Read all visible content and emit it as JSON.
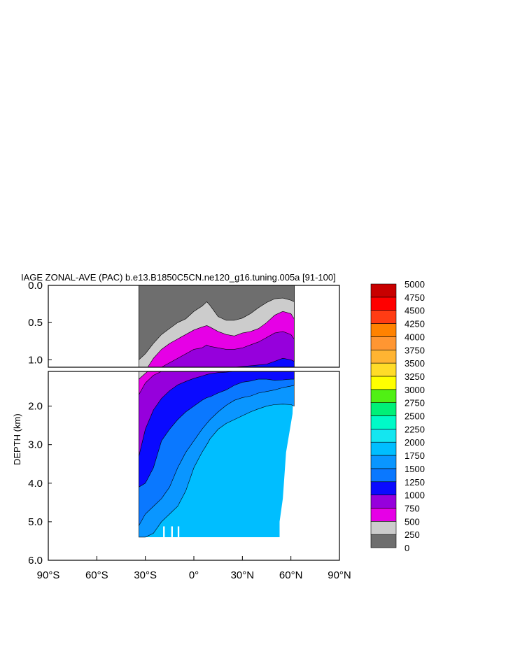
{
  "chart_data": {
    "type": "contour",
    "title": "IAGE ZONAL-AVE (PAC) b.e13.B1850C5CN.ne120_g16.tuning.005a [91-100]",
    "ylabel": "DEPTH (km)",
    "xlabel": "",
    "xlim": [
      -90,
      90
    ],
    "ylim_upper_panel": [
      0.0,
      1.1
    ],
    "ylim_lower_panel": [
      1.1,
      6.0
    ],
    "x_ticks": [
      {
        "value": -90,
        "label": "90°S"
      },
      {
        "value": -60,
        "label": "60°S"
      },
      {
        "value": -30,
        "label": "30°S"
      },
      {
        "value": 0,
        "label": "0°"
      },
      {
        "value": 30,
        "label": "30°N"
      },
      {
        "value": 60,
        "label": "60°N"
      },
      {
        "value": 90,
        "label": "90°N"
      }
    ],
    "y_ticks_upper": [
      {
        "value": 0.0,
        "label": "0.0"
      },
      {
        "value": 0.5,
        "label": "0.5"
      },
      {
        "value": 1.0,
        "label": "1.0"
      }
    ],
    "y_ticks_lower": [
      {
        "value": 2.0,
        "label": "2.0"
      },
      {
        "value": 3.0,
        "label": "3.0"
      },
      {
        "value": 4.0,
        "label": "4.0"
      },
      {
        "value": 5.0,
        "label": "5.0"
      },
      {
        "value": 6.0,
        "label": "6.0"
      }
    ],
    "colorbar": {
      "levels": [
        0,
        250,
        500,
        750,
        1000,
        1250,
        1500,
        1750,
        2000,
        2250,
        2500,
        2750,
        3000,
        3250,
        3500,
        3750,
        4000,
        4250,
        4500,
        4750,
        5000
      ],
      "labels": [
        "0",
        "250",
        "500",
        "750",
        "1000",
        "1250",
        "1500",
        "1750",
        "2000",
        "2250",
        "2500",
        "2750",
        "3000",
        "3250",
        "3500",
        "3750",
        "4000",
        "4250",
        "4500",
        "4750",
        "5000"
      ],
      "colors": [
        "#6e6e6e",
        "#cccccc",
        "#e600e6",
        "#9600dc",
        "#0a0aff",
        "#0a78ff",
        "#0a96ff",
        "#00beff",
        "#14e6f0",
        "#00fac8",
        "#00f078",
        "#50f014",
        "#ffff00",
        "#ffdc28",
        "#ffb432",
        "#ff9632",
        "#ff8200",
        "#ff3c14",
        "#ff0000",
        "#c80000"
      ]
    },
    "contour_boundaries": {
      "lat": [
        -34,
        -30,
        -25,
        -20,
        -15,
        -10,
        -5,
        0,
        5,
        8,
        10,
        15,
        20,
        25,
        30,
        35,
        40,
        45,
        50,
        55,
        60,
        62
      ],
      "depth_250": [
        1.0,
        0.92,
        0.78,
        0.66,
        0.58,
        0.5,
        0.45,
        0.35,
        0.28,
        0.22,
        0.27,
        0.42,
        0.47,
        0.47,
        0.44,
        0.38,
        0.3,
        0.23,
        0.18,
        0.17,
        0.2,
        0.22
      ],
      "depth_500": [
        1.3,
        1.15,
        0.98,
        0.86,
        0.78,
        0.72,
        0.66,
        0.6,
        0.56,
        0.54,
        0.56,
        0.62,
        0.66,
        0.68,
        0.64,
        0.62,
        0.58,
        0.5,
        0.4,
        0.35,
        0.38,
        0.45
      ],
      "depth_750": [
        1.7,
        1.4,
        1.2,
        1.1,
        1.04,
        0.98,
        0.92,
        0.86,
        0.84,
        0.8,
        0.82,
        0.84,
        0.86,
        0.86,
        0.84,
        0.8,
        0.76,
        0.7,
        0.64,
        0.62,
        0.66,
        0.72
      ],
      "depth_1000": [
        3.3,
        2.6,
        2.1,
        1.8,
        1.6,
        1.45,
        1.36,
        1.28,
        1.22,
        1.18,
        1.16,
        1.13,
        1.12,
        1.1,
        1.09,
        1.08,
        1.07,
        1.06,
        1.02,
        0.98,
        1.0,
        1.02
      ],
      "depth_1250": [
        4.1,
        4.0,
        3.6,
        2.9,
        2.6,
        2.35,
        2.15,
        2.0,
        1.85,
        1.78,
        1.76,
        1.66,
        1.58,
        1.46,
        1.38,
        1.35,
        1.3,
        1.3,
        1.33,
        1.32,
        1.3,
        1.3
      ],
      "depth_1500": [
        5.1,
        4.8,
        4.6,
        4.4,
        4.1,
        3.6,
        3.2,
        2.9,
        2.6,
        2.45,
        2.35,
        2.15,
        1.98,
        1.85,
        1.78,
        1.74,
        1.66,
        1.62,
        1.58,
        1.52,
        1.48,
        1.46
      ],
      "depth_1750": [
        null,
        5.4,
        5.3,
        5.0,
        4.8,
        4.6,
        4.2,
        3.6,
        3.2,
        3.0,
        2.85,
        2.6,
        2.45,
        2.35,
        2.25,
        2.15,
        2.07,
        2.0,
        1.96,
        1.95,
        1.96,
        2.0
      ]
    }
  }
}
